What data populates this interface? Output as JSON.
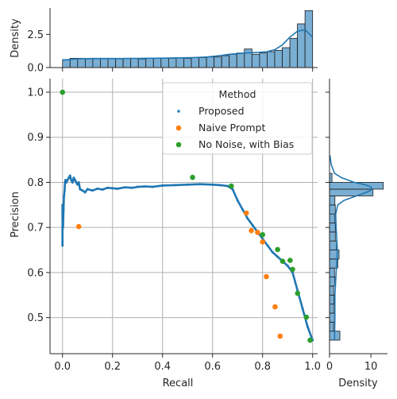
{
  "chart_data": {
    "type": "scatter",
    "title": "",
    "xlabel": "Recall",
    "ylabel": "Precision",
    "xlim": [
      -0.05,
      1.02
    ],
    "ylim": [
      0.42,
      1.03
    ],
    "xticks": [
      "0.0",
      "0.2",
      "0.4",
      "0.6",
      "0.8",
      "1.0"
    ],
    "xtick_values": [
      0.0,
      0.2,
      0.4,
      0.6,
      0.8,
      1.0
    ],
    "yticks": [
      "0.5",
      "0.6",
      "0.7",
      "0.8",
      "0.9",
      "1.0"
    ],
    "ytick_values": [
      0.5,
      0.6,
      0.7,
      0.8,
      0.9,
      1.0
    ],
    "grid": true,
    "legend": {
      "title": "Method",
      "placement": "top-right",
      "entries": [
        "Proposed",
        "Naive Prompt",
        "No Noise, with Bias"
      ]
    },
    "colors": {
      "proposed": "#1f77b4",
      "naive": "#ff7f0e",
      "nonoise": "#2ca02c",
      "hist_fill": "#7aaed3"
    },
    "series": [
      {
        "name": "Proposed",
        "marker": "small-dot",
        "x": [
          0.0,
          0.0,
          0.002,
          0.004,
          0.006,
          0.008,
          0.01,
          0.012,
          0.015,
          0.02,
          0.025,
          0.03,
          0.035,
          0.04,
          0.045,
          0.05,
          0.055,
          0.06,
          0.065,
          0.07,
          0.08,
          0.09,
          0.1,
          0.12,
          0.14,
          0.16,
          0.18,
          0.2,
          0.22,
          0.25,
          0.28,
          0.3,
          0.33,
          0.36,
          0.4,
          0.45,
          0.5,
          0.55,
          0.6,
          0.63,
          0.66,
          0.68,
          0.7,
          0.72,
          0.74,
          0.76,
          0.78,
          0.8,
          0.82,
          0.84,
          0.86,
          0.88,
          0.9,
          0.92,
          0.94,
          0.96,
          0.98,
          1.0
        ],
        "y": [
          0.66,
          0.75,
          0.7,
          0.74,
          0.77,
          0.78,
          0.8,
          0.805,
          0.8,
          0.805,
          0.81,
          0.815,
          0.805,
          0.8,
          0.81,
          0.805,
          0.8,
          0.795,
          0.8,
          0.785,
          0.782,
          0.778,
          0.785,
          0.782,
          0.786,
          0.784,
          0.788,
          0.787,
          0.786,
          0.789,
          0.788,
          0.79,
          0.791,
          0.79,
          0.793,
          0.794,
          0.795,
          0.796,
          0.795,
          0.794,
          0.792,
          0.785,
          0.76,
          0.74,
          0.72,
          0.705,
          0.69,
          0.675,
          0.66,
          0.645,
          0.635,
          0.625,
          0.615,
          0.6,
          0.56,
          0.52,
          0.48,
          0.45
        ]
      },
      {
        "name": "Naive Prompt",
        "marker": "circle",
        "x": [
          0.065,
          0.735,
          0.755,
          0.78,
          0.8,
          0.815,
          0.85,
          0.87
        ],
        "y": [
          0.702,
          0.732,
          0.693,
          0.689,
          0.668,
          0.591,
          0.524,
          0.459
        ]
      },
      {
        "name": "No Noise, with Bias",
        "marker": "circle",
        "x": [
          0.0,
          0.52,
          0.675,
          0.8,
          0.86,
          0.88,
          0.91,
          0.92,
          0.94,
          0.975,
          0.99
        ],
        "y": [
          1.0,
          0.811,
          0.792,
          0.684,
          0.651,
          0.625,
          0.627,
          0.607,
          0.554,
          0.501,
          0.45
        ]
      }
    ],
    "marginal_x": {
      "ylabel": "Density",
      "yticks": [
        "0.0",
        "2.5"
      ],
      "ytick_values": [
        0.0,
        2.5
      ],
      "ylim": [
        0,
        4.5
      ],
      "bin_heights": [
        0.6,
        0.7,
        0.7,
        0.65,
        0.7,
        0.7,
        0.7,
        0.65,
        0.7,
        0.7,
        0.65,
        0.7,
        0.7,
        0.7,
        0.7,
        0.75,
        0.7,
        0.75,
        0.75,
        0.8,
        0.8,
        0.9,
        1.0,
        1.1,
        1.4,
        1.0,
        1.1,
        1.2,
        1.3,
        1.5,
        2.2,
        3.3,
        4.3
      ],
      "kde": [
        0.55,
        0.62,
        0.66,
        0.67,
        0.68,
        0.68,
        0.68,
        0.68,
        0.68,
        0.69,
        0.69,
        0.7,
        0.7,
        0.71,
        0.72,
        0.73,
        0.74,
        0.75,
        0.77,
        0.8,
        0.85,
        0.92,
        1.0,
        1.05,
        1.1,
        1.12,
        1.15,
        1.2,
        1.35,
        1.7,
        2.3,
        2.75,
        2.85,
        2.3
      ]
    },
    "marginal_y": {
      "xlabel": "Density",
      "xticks": [
        "0",
        "10"
      ],
      "xtick_values": [
        0,
        10
      ],
      "xlim": [
        0,
        14
      ],
      "bins": [
        {
          "y0": 0.45,
          "y1": 0.47,
          "v": 2.5
        },
        {
          "y0": 0.47,
          "y1": 0.49,
          "v": 1.0
        },
        {
          "y0": 0.49,
          "y1": 0.51,
          "v": 1.2
        },
        {
          "y0": 0.51,
          "y1": 0.53,
          "v": 1.0
        },
        {
          "y0": 0.53,
          "y1": 0.55,
          "v": 1.1
        },
        {
          "y0": 0.55,
          "y1": 0.57,
          "v": 1.0
        },
        {
          "y0": 0.57,
          "y1": 0.59,
          "v": 1.3
        },
        {
          "y0": 0.59,
          "y1": 0.61,
          "v": 1.2
        },
        {
          "y0": 0.61,
          "y1": 0.63,
          "v": 2.0
        },
        {
          "y0": 0.63,
          "y1": 0.65,
          "v": 2.3
        },
        {
          "y0": 0.65,
          "y1": 0.67,
          "v": 1.7
        },
        {
          "y0": 0.67,
          "y1": 0.69,
          "v": 1.4
        },
        {
          "y0": 0.69,
          "y1": 0.71,
          "v": 1.4
        },
        {
          "y0": 0.71,
          "y1": 0.73,
          "v": 1.3
        },
        {
          "y0": 0.73,
          "y1": 0.75,
          "v": 1.4
        },
        {
          "y0": 0.75,
          "y1": 0.77,
          "v": 1.3
        },
        {
          "y0": 0.77,
          "y1": 0.785,
          "v": 10.5
        },
        {
          "y0": 0.785,
          "y1": 0.8,
          "v": 13.0
        },
        {
          "y0": 0.8,
          "y1": 0.82,
          "v": 0.6
        }
      ],
      "kde_y": [
        0.45,
        0.5,
        0.55,
        0.6,
        0.65,
        0.7,
        0.73,
        0.75,
        0.76,
        0.77,
        0.78,
        0.785,
        0.79,
        0.795,
        0.8,
        0.81,
        0.82,
        0.84,
        0.86
      ],
      "kde_v": [
        1.2,
        1.3,
        1.3,
        1.6,
        1.9,
        1.6,
        1.5,
        2.0,
        3.5,
        6.5,
        9.5,
        10.3,
        10.0,
        8.5,
        6.0,
        3.0,
        1.2,
        0.4,
        0.1
      ]
    }
  }
}
